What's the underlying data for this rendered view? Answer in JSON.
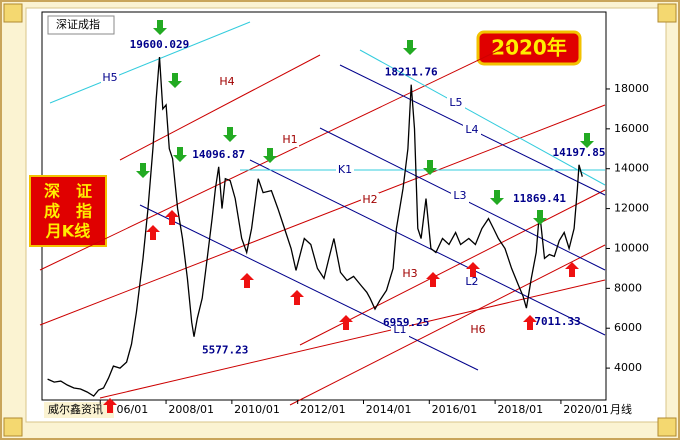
{
  "chart_data": {
    "type": "line",
    "title": "深证成指",
    "badge": "2020年",
    "side_note": [
      "深　证",
      "成　指",
      "月K线"
    ],
    "source": "威尔鑫资讯",
    "x_label": "月线",
    "series": [
      {
        "name": "深证成指",
        "color": "#000000",
        "x": [
          2004.4,
          2004.6,
          2004.8,
          2005.0,
          2005.2,
          2005.4,
          2005.6,
          2005.8,
          2005.95,
          2006.1,
          2006.25,
          2006.4,
          2006.6,
          2006.8,
          2006.95,
          2007.1,
          2007.3,
          2007.45,
          2007.6,
          2007.7,
          2007.8,
          2007.9,
          2008.0,
          2008.1,
          2008.2,
          2008.35,
          2008.5,
          2008.65,
          2008.78,
          2008.85,
          2008.95,
          2009.1,
          2009.25,
          2009.4,
          2009.5,
          2009.6,
          2009.7,
          2009.8,
          2009.95,
          2010.1,
          2010.3,
          2010.45,
          2010.6,
          2010.8,
          2010.95,
          2011.2,
          2011.4,
          2011.6,
          2011.8,
          2011.95,
          2012.2,
          2012.4,
          2012.6,
          2012.8,
          2012.95,
          2013.1,
          2013.3,
          2013.5,
          2013.7,
          2013.95,
          2014.1,
          2014.2,
          2014.35,
          2014.5,
          2014.7,
          2014.9,
          2015.0,
          2015.2,
          2015.35,
          2015.45,
          2015.55,
          2015.65,
          2015.75,
          2015.9,
          2016.05,
          2016.2,
          2016.4,
          2016.6,
          2016.8,
          2016.95,
          2017.2,
          2017.4,
          2017.6,
          2017.8,
          2017.95,
          2018.1,
          2018.3,
          2018.5,
          2018.7,
          2018.85,
          2018.95,
          2019.1,
          2019.25,
          2019.35,
          2019.5,
          2019.65,
          2019.8,
          2019.95,
          2020.1,
          2020.25,
          2020.4,
          2020.5,
          2020.55,
          2020.65
        ],
        "values": [
          3450,
          3300,
          3350,
          3150,
          3000,
          2950,
          2800,
          2600,
          2900,
          3000,
          3500,
          4100,
          4000,
          4300,
          5200,
          6800,
          9500,
          12000,
          15000,
          17500,
          19600.029,
          17000,
          17200,
          15000,
          14500,
          12000,
          10500,
          8500,
          6300,
          5577.23,
          6500,
          7500,
          9500,
          11500,
          13000,
          14096.87,
          12000,
          13500,
          13400,
          12500,
          10500,
          9800,
          11000,
          13500,
          12800,
          12900,
          12000,
          11000,
          10000,
          8900,
          10500,
          10200,
          9000,
          8500,
          9500,
          10500,
          8800,
          8400,
          8600,
          8100,
          7800,
          7500,
          6959.25,
          7400,
          7900,
          9000,
          11000,
          13000,
          15000,
          18211.76,
          16000,
          11000,
          10500,
          12500,
          10000,
          9800,
          10500,
          10200,
          10800,
          10200,
          10500,
          10200,
          11000,
          11500,
          11000,
          10500,
          10000,
          9000,
          8200,
          7600,
          7011.33,
          8500,
          9800,
          11869.41,
          9500,
          9700,
          9600,
          10400,
          10800,
          10000,
          11000,
          13000,
          14197.85,
          13600
        ]
      }
    ],
    "extremes": [
      {
        "x": 2007.8,
        "value": 19600.029
      },
      {
        "x": 2008.85,
        "value": 5577.23
      },
      {
        "x": 2009.6,
        "value": 14096.87
      },
      {
        "x": 2014.35,
        "value": 6959.25
      },
      {
        "x": 2015.45,
        "value": 18211.76
      },
      {
        "x": 2018.95,
        "value": 7011.33
      },
      {
        "x": 2019.35,
        "value": 11869.41
      },
      {
        "x": 2020.55,
        "value": 14197.85
      }
    ],
    "trend_lines": [
      "H1",
      "H2",
      "H3",
      "H4",
      "H5",
      "H6",
      "L1",
      "L2",
      "L3",
      "L4",
      "L5",
      "K1"
    ],
    "xlim": [
      2004.23,
      2021.37
    ],
    "ylim": [
      2400,
      21860
    ],
    "xticks": [
      {
        "value": 2006,
        "label": "06/01"
      },
      {
        "value": 2008,
        "label": "2008/01"
      },
      {
        "value": 2010,
        "label": "2010/01"
      },
      {
        "value": 2012,
        "label": "2012/01"
      },
      {
        "value": 2014,
        "label": "2014/01"
      },
      {
        "value": 2016,
        "label": "2016/01"
      },
      {
        "value": 2018,
        "label": "2018/01"
      },
      {
        "value": 2020,
        "label": "2020/01"
      }
    ],
    "yticks": [
      4000,
      6000,
      8000,
      10000,
      12000,
      14000,
      16000,
      18000
    ]
  }
}
